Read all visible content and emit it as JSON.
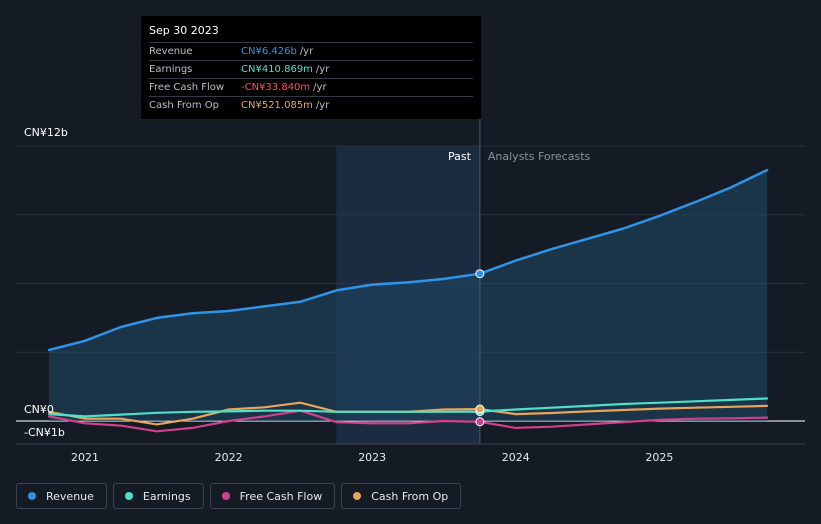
{
  "chart_data": {
    "type": "line",
    "title": "",
    "xlabel": "",
    "ylabel": "",
    "x_ticks": [
      "2021",
      "2022",
      "2023",
      "2024",
      "2025"
    ],
    "y_ticks": [
      "CN¥12b",
      "CN¥0",
      "-CN¥1b"
    ],
    "ylim": [
      -1,
      12
    ],
    "past_label": "Past",
    "forecast_label": "Analysts Forecasts",
    "past_forecast_boundary": 2023.75,
    "shaded_region_start": 2022.75,
    "series": [
      {
        "name": "Revenue",
        "color": "#2f94e8",
        "points": [
          [
            2020.75,
            3.1
          ],
          [
            2021.0,
            3.5
          ],
          [
            2021.25,
            4.1
          ],
          [
            2021.5,
            4.5
          ],
          [
            2021.75,
            4.7
          ],
          [
            2022.0,
            4.8
          ],
          [
            2022.25,
            5.0
          ],
          [
            2022.5,
            5.2
          ],
          [
            2022.75,
            5.7
          ],
          [
            2023.0,
            5.95
          ],
          [
            2023.25,
            6.05
          ],
          [
            2023.5,
            6.2
          ],
          [
            2023.75,
            6.426
          ],
          [
            2024.0,
            7.0
          ],
          [
            2024.25,
            7.5
          ],
          [
            2024.5,
            7.95
          ],
          [
            2024.75,
            8.4
          ],
          [
            2025.0,
            8.95
          ],
          [
            2025.25,
            9.55
          ],
          [
            2025.5,
            10.2
          ],
          [
            2025.75,
            10.95
          ]
        ]
      },
      {
        "name": "Earnings",
        "color": "#4ee0c8",
        "points": [
          [
            2020.75,
            0.3
          ],
          [
            2021.0,
            0.2
          ],
          [
            2021.25,
            0.28
          ],
          [
            2021.5,
            0.36
          ],
          [
            2021.75,
            0.4
          ],
          [
            2022.0,
            0.42
          ],
          [
            2022.25,
            0.45
          ],
          [
            2022.5,
            0.45
          ],
          [
            2022.75,
            0.4
          ],
          [
            2023.0,
            0.4
          ],
          [
            2023.25,
            0.4
          ],
          [
            2023.5,
            0.4
          ],
          [
            2023.75,
            0.411
          ],
          [
            2024.0,
            0.5
          ],
          [
            2024.25,
            0.58
          ],
          [
            2024.5,
            0.66
          ],
          [
            2024.75,
            0.74
          ],
          [
            2025.0,
            0.8
          ],
          [
            2025.25,
            0.86
          ],
          [
            2025.5,
            0.92
          ],
          [
            2025.75,
            0.98
          ]
        ]
      },
      {
        "name": "Free Cash Flow",
        "color": "#d0418a",
        "points": [
          [
            2020.75,
            0.2
          ],
          [
            2021.0,
            -0.1
          ],
          [
            2021.25,
            -0.2
          ],
          [
            2021.5,
            -0.45
          ],
          [
            2021.75,
            -0.3
          ],
          [
            2022.0,
            0.0
          ],
          [
            2022.25,
            0.2
          ],
          [
            2022.5,
            0.45
          ],
          [
            2022.75,
            -0.05
          ],
          [
            2023.0,
            -0.1
          ],
          [
            2023.25,
            -0.1
          ],
          [
            2023.5,
            0.0
          ],
          [
            2023.75,
            -0.034
          ],
          [
            2024.0,
            -0.3
          ],
          [
            2024.25,
            -0.25
          ],
          [
            2024.5,
            -0.15
          ],
          [
            2024.75,
            -0.05
          ],
          [
            2025.0,
            0.05
          ],
          [
            2025.25,
            0.1
          ],
          [
            2025.5,
            0.12
          ],
          [
            2025.75,
            0.15
          ]
        ]
      },
      {
        "name": "Cash From Op",
        "color": "#e8a45a",
        "points": [
          [
            2020.75,
            0.4
          ],
          [
            2021.0,
            0.1
          ],
          [
            2021.25,
            0.1
          ],
          [
            2021.5,
            -0.15
          ],
          [
            2021.75,
            0.1
          ],
          [
            2022.0,
            0.5
          ],
          [
            2022.25,
            0.6
          ],
          [
            2022.5,
            0.8
          ],
          [
            2022.75,
            0.4
          ],
          [
            2023.0,
            0.4
          ],
          [
            2023.25,
            0.4
          ],
          [
            2023.5,
            0.5
          ],
          [
            2023.75,
            0.521
          ],
          [
            2024.0,
            0.3
          ],
          [
            2024.25,
            0.35
          ],
          [
            2024.5,
            0.42
          ],
          [
            2024.75,
            0.48
          ],
          [
            2025.0,
            0.54
          ],
          [
            2025.25,
            0.58
          ],
          [
            2025.5,
            0.62
          ],
          [
            2025.75,
            0.66
          ]
        ]
      }
    ]
  },
  "tooltip": {
    "date": "Sep 30 2023",
    "rows": [
      {
        "label": "Revenue",
        "value": "CN¥6.426b",
        "unit": "/yr",
        "color": "#2f94e8"
      },
      {
        "label": "Earnings",
        "value": "CN¥410.869m",
        "unit": "/yr",
        "color": "#4ee0c8"
      },
      {
        "label": "Free Cash Flow",
        "value": "-CN¥33.840m",
        "unit": "/yr",
        "color": "#ff4d5e"
      },
      {
        "label": "Cash From Op",
        "value": "CN¥521.085m",
        "unit": "/yr",
        "color": "#e8a45a"
      }
    ]
  },
  "legend": [
    {
      "label": "Revenue",
      "color": "#2f94e8"
    },
    {
      "label": "Earnings",
      "color": "#4ee0c8"
    },
    {
      "label": "Free Cash Flow",
      "color": "#d0418a"
    },
    {
      "label": "Cash From Op",
      "color": "#e8a45a"
    }
  ]
}
